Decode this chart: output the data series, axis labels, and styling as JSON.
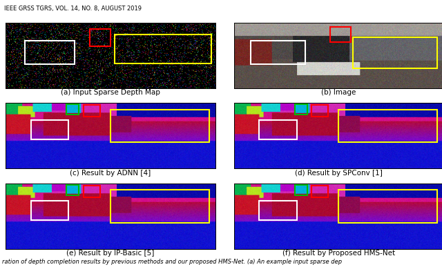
{
  "figsize": [
    6.4,
    3.87
  ],
  "dpi": 100,
  "header_text": "IEEE GRSS TGRS, VOL. 14, NO. 8, AUGUST 2019",
  "footer_text": "ration of depth completion results by previous methods and our proposed HMS-Net. (a) An example input sparse dep",
  "captions": [
    "(a) Input Sparse Depth Map",
    "(b) Image",
    "(c) Result by ADNN [4]",
    "(d) Result by SPConv [1]",
    "(e) Result by IP-Basic [5]",
    "(f) Result by Proposed HMS-Net"
  ],
  "header_fontsize": 6.0,
  "caption_fontsize": 7.5,
  "footer_fontsize": 6.0,
  "caption_color": "#000000",
  "header_color": "#000000",
  "footer_color": "#000000",
  "bg_color": "#ffffff",
  "border_color": "#000000",
  "rect_white": {
    "lw": 1.5,
    "color": "#ffffff"
  },
  "rect_yellow": {
    "lw": 1.5,
    "color": "#ffff00"
  },
  "rect_red": {
    "lw": 1.5,
    "color": "#ff0000"
  },
  "rect_green": {
    "lw": 1.5,
    "color": "#00bb00"
  },
  "boxes": {
    "sparse": {
      "white": [
        0.09,
        0.28,
        0.24,
        0.35
      ],
      "red": [
        0.4,
        0.1,
        0.1,
        0.26
      ],
      "yellow": [
        0.52,
        0.18,
        0.46,
        0.44
      ]
    },
    "image": {
      "white": [
        0.08,
        0.28,
        0.26,
        0.35
      ],
      "red": [
        0.46,
        0.06,
        0.1,
        0.24
      ],
      "yellow": [
        0.57,
        0.22,
        0.4,
        0.48
      ]
    },
    "depth": {
      "white": [
        0.12,
        0.26,
        0.18,
        0.3
      ],
      "red": [
        0.37,
        0.03,
        0.08,
        0.18
      ],
      "yellow": [
        0.5,
        0.1,
        0.47,
        0.5
      ],
      "green": [
        0.29,
        0.02,
        0.06,
        0.16
      ]
    }
  }
}
